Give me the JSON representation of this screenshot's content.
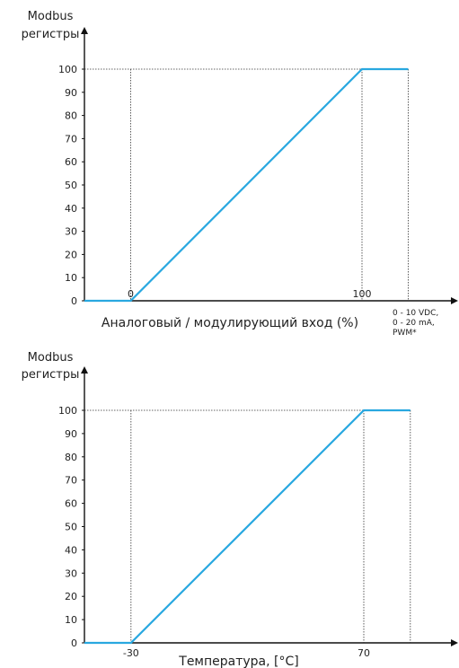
{
  "chart_data": [
    {
      "type": "line",
      "ylabel_lines": [
        "Modbus",
        "регистры"
      ],
      "xlabel": "Аналоговый / модулирующий вход (%)",
      "x_note_lines": [
        "0 - 10 VDC,",
        "0 - 20 mA,",
        "PWM*"
      ],
      "x_ticks": [
        "0",
        "100"
      ],
      "y_ticks": [
        "0",
        "10",
        "20",
        "30",
        "40",
        "50",
        "60",
        "70",
        "80",
        "90",
        "100"
      ],
      "series": [
        {
          "x": [
            -20,
            0,
            100,
            120
          ],
          "y": [
            0,
            0,
            100,
            100
          ]
        }
      ],
      "xlim": [
        -20,
        130
      ],
      "ylim": [
        0,
        100
      ],
      "line_color": "#29a8e0",
      "grid": false
    },
    {
      "type": "line",
      "ylabel_lines": [
        "Modbus",
        "регистры"
      ],
      "xlabel": "Температура, [°C]",
      "x_ticks": [
        "-30",
        "70"
      ],
      "y_ticks": [
        "0",
        "10",
        "20",
        "30",
        "40",
        "50",
        "60",
        "70",
        "80",
        "90",
        "100"
      ],
      "series": [
        {
          "x": [
            -50,
            -30,
            70,
            90
          ],
          "y": [
            0,
            0,
            100,
            100
          ]
        }
      ],
      "xlim": [
        -50,
        100
      ],
      "ylim": [
        0,
        100
      ],
      "line_color": "#29a8e0",
      "grid": false
    }
  ]
}
